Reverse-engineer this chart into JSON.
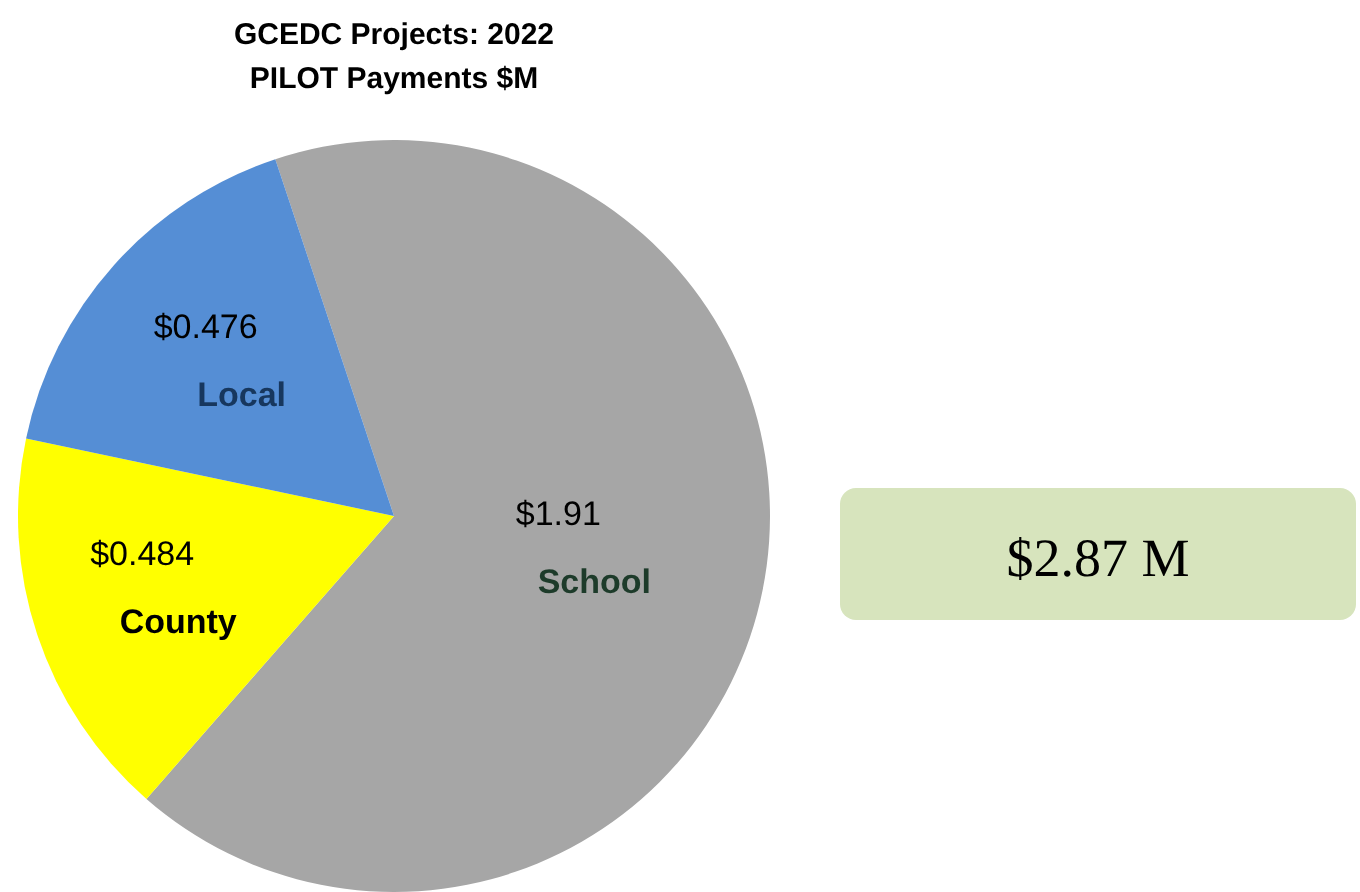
{
  "chart_data": {
    "type": "pie",
    "title": "GCEDC Projects: 2022\nPILOT Payments $M",
    "categories": [
      "School",
      "County",
      "Local"
    ],
    "values": [
      1.91,
      0.484,
      0.476
    ],
    "value_labels": [
      "$1.91",
      "$0.484",
      "$0.476"
    ],
    "colors": [
      "#a6a6a6",
      "#ffff00",
      "#558ed5"
    ],
    "annotations": [
      "$2.87 M"
    ]
  }
}
